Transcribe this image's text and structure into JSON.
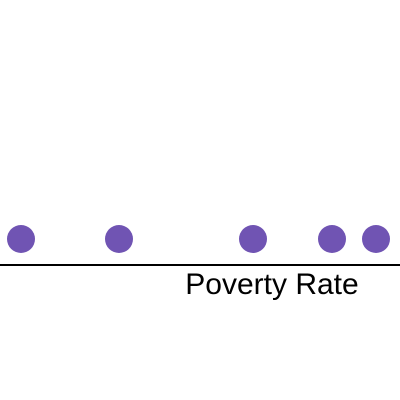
{
  "chart_data": {
    "type": "strip",
    "x_label": "Poverty Rate",
    "x": [
      5.25,
      29.75,
      63.25,
      83,
      94
    ],
    "color": "#7054b3",
    "xlim": [
      0,
      100
    ]
  }
}
